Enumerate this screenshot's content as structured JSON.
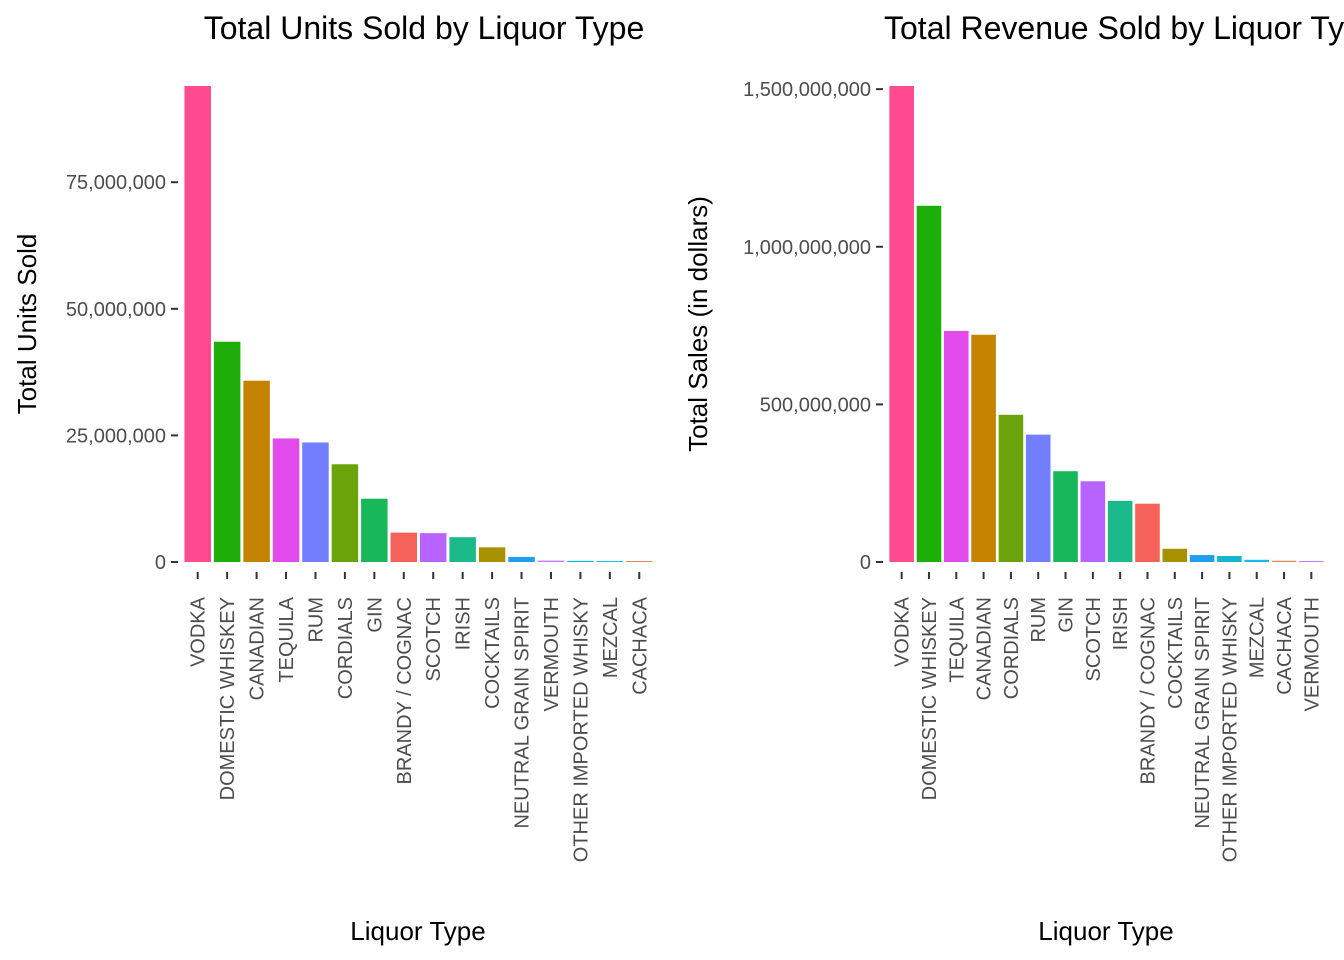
{
  "chart_data": [
    {
      "type": "bar",
      "title": "Total Units Sold by Liquor Type",
      "xlabel": "Liquor Type",
      "ylabel": "Total Units Sold",
      "ylim": [
        0,
        94000000
      ],
      "yticks": [
        0,
        25000000,
        50000000,
        75000000
      ],
      "ytick_labels": [
        "0",
        "25,000,000",
        "50,000,000",
        "75,000,000"
      ],
      "grid": false,
      "legend": "none",
      "categories": [
        "VODKA",
        "DOMESTIC WHISKEY",
        "CANADIAN",
        "TEQUILA",
        "RUM",
        "CORDIALS",
        "GIN",
        "BRANDY / COGNAC",
        "SCOTCH",
        "IRISH",
        "COCKTAILS",
        "NEUTRAL GRAIN SPIRIT",
        "VERMOUTH",
        "OTHER IMPORTED WHISKY",
        "MEZCAL",
        "CACHACA"
      ],
      "values": [
        94000000,
        43500000,
        35800000,
        24400000,
        23600000,
        19300000,
        12500000,
        5800000,
        5700000,
        4900000,
        2900000,
        1000000,
        280000,
        230000,
        180000,
        120000
      ],
      "colors": [
        "#FF4A91",
        "#1DAE07",
        "#C48300",
        "#E24AEC",
        "#737EFF",
        "#6BA30A",
        "#18B75A",
        "#F4625A",
        "#B863FF",
        "#1CBA8A",
        "#A69100",
        "#1F9EEE",
        "#C27CF9",
        "#15B5D0",
        "#14BCEA",
        "#E08A5A"
      ]
    },
    {
      "type": "bar",
      "title": "Total Revenue Sold by Liquor Type",
      "xlabel": "Liquor Type",
      "ylabel": "Total Sales (in dollars)",
      "ylim": [
        0,
        1510000000
      ],
      "yticks": [
        0,
        500000000,
        1000000000,
        1500000000
      ],
      "ytick_labels": [
        "0",
        "500,000,000",
        "1,000,000,000",
        "1,500,000,000"
      ],
      "grid": false,
      "legend": "none",
      "categories": [
        "VODKA",
        "DOMESTIC WHISKEY",
        "TEQUILA",
        "CANADIAN",
        "CORDIALS",
        "RUM",
        "GIN",
        "SCOTCH",
        "IRISH",
        "BRANDY / COGNAC",
        "COCKTAILS",
        "NEUTRAL GRAIN SPIRIT",
        "OTHER IMPORTED WHISKY",
        "MEZCAL",
        "CACHACA",
        "VERMOUTH"
      ],
      "values": [
        1510000000,
        1130000000,
        733000000,
        721000000,
        467000000,
        404000000,
        288000000,
        256000000,
        194000000,
        185000000,
        42000000,
        22000000,
        19000000,
        7000000,
        4000000,
        3000000
      ],
      "colors": [
        "#FF4A91",
        "#1DAE07",
        "#E24AEC",
        "#C48300",
        "#6BA30A",
        "#737EFF",
        "#18B75A",
        "#B863FF",
        "#1CBA8A",
        "#F4625A",
        "#A69100",
        "#1F9EEE",
        "#15B5D0",
        "#14BCEA",
        "#E08A5A",
        "#C27CF9"
      ]
    }
  ]
}
